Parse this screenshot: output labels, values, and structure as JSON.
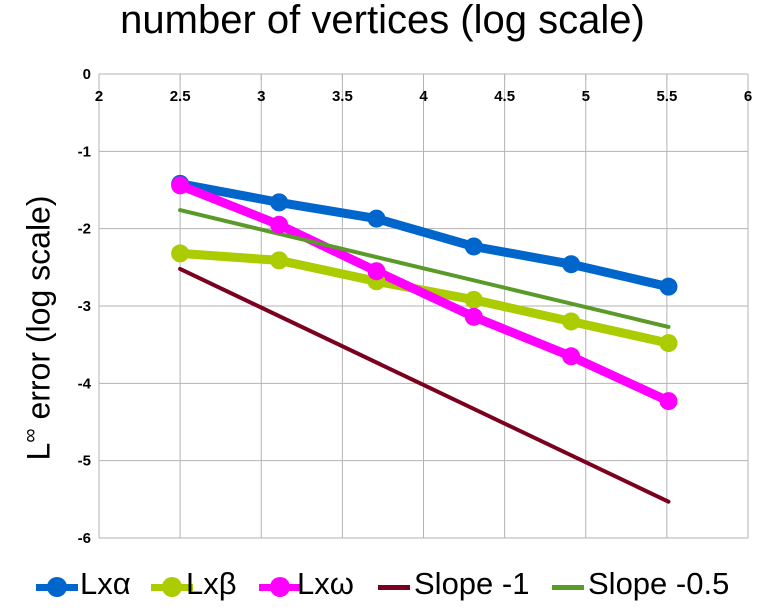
{
  "chart_data": {
    "type": "line",
    "title": "number of vertices (log scale)",
    "ylabel_main": "L",
    "ylabel_sup": "∞",
    "ylabel_rest": " error (log scale)",
    "xlim": [
      2,
      6
    ],
    "ylim": [
      -6,
      0
    ],
    "x_ticks": [
      "2",
      "2.5",
      "3",
      "3.5",
      "4",
      "4.5",
      "5",
      "5.5",
      "6"
    ],
    "y_ticks": [
      "0",
      "-1",
      "-2",
      "-3",
      "-4",
      "-5",
      "-6"
    ],
    "grid": true,
    "legend_position": "bottom",
    "series": [
      {
        "name": "Lxα",
        "color": "#0066cc",
        "marker": true,
        "width": 9,
        "x": [
          2.5,
          3.11,
          3.71,
          4.31,
          4.91,
          5.51
        ],
        "y": [
          -1.42,
          -1.66,
          -1.87,
          -2.23,
          -2.46,
          -2.75
        ]
      },
      {
        "name": "Lxβ",
        "color": "#aacc00",
        "marker": true,
        "width": 9,
        "x": [
          2.5,
          3.11,
          3.71,
          4.31,
          4.91,
          5.51
        ],
        "y": [
          -2.32,
          -2.41,
          -2.68,
          -2.92,
          -3.2,
          -3.48
        ]
      },
      {
        "name": "Lxω",
        "color": "#ff00ff",
        "marker": true,
        "width": 9,
        "x": [
          2.5,
          3.11,
          3.71,
          4.31,
          4.91,
          5.51
        ],
        "y": [
          -1.44,
          -1.95,
          -2.55,
          -3.14,
          -3.65,
          -4.23
        ]
      },
      {
        "name": "Slope -1",
        "color": "#7b0020",
        "marker": false,
        "width": 4,
        "x": [
          2.5,
          5.51
        ],
        "y": [
          -2.52,
          -5.53
        ]
      },
      {
        "name": "Slope -0.5",
        "color": "#5a9a28",
        "marker": false,
        "width": 4,
        "x": [
          2.5,
          5.51
        ],
        "y": [
          -1.76,
          -3.27
        ]
      }
    ]
  }
}
